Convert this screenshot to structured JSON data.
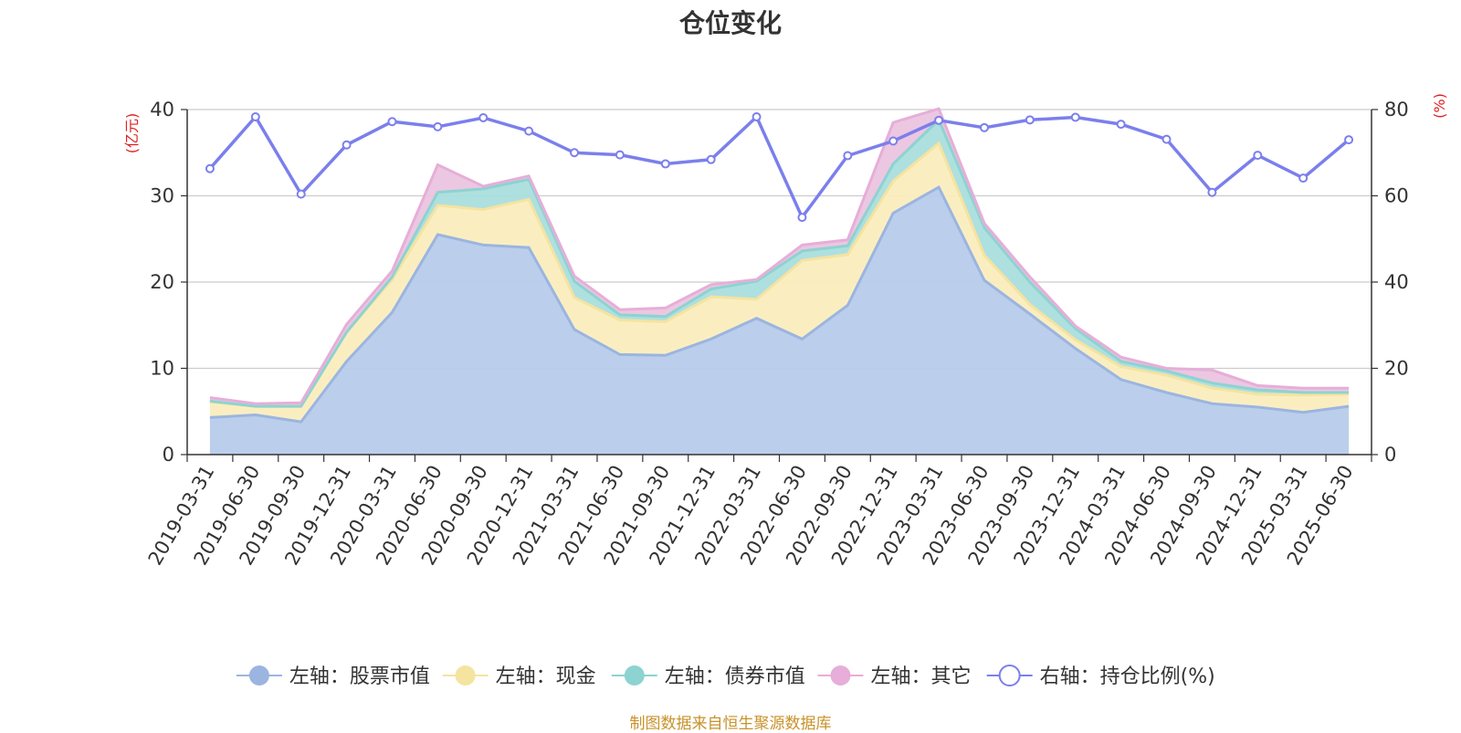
{
  "source_note": "制图数据来自恒生聚源数据库",
  "chart_data": {
    "type": "area",
    "title": "仓位变化",
    "left_axis": {
      "unit_label": "(亿元)",
      "ylim": [
        0,
        40
      ],
      "ticks": [
        0,
        10,
        20,
        30,
        40
      ]
    },
    "right_axis": {
      "unit_label": "(%)",
      "ylim": [
        0,
        80
      ],
      "ticks": [
        0,
        20,
        40,
        60,
        80
      ]
    },
    "grid": true,
    "legend_position": "bottom",
    "categories": [
      "2019-03-31",
      "2019-06-30",
      "2019-09-30",
      "2019-12-31",
      "2020-03-31",
      "2020-06-30",
      "2020-09-30",
      "2020-12-31",
      "2021-03-31",
      "2021-06-30",
      "2021-09-30",
      "2021-12-31",
      "2022-03-31",
      "2022-06-30",
      "2022-09-30",
      "2022-12-31",
      "2023-03-31",
      "2023-06-30",
      "2023-09-30",
      "2023-12-31",
      "2024-03-31",
      "2024-06-30",
      "2024-09-30",
      "2024-12-31",
      "2025-03-31",
      "2025-06-30"
    ],
    "series": [
      {
        "name": "左轴：股票市值",
        "axis": "left",
        "kind": "stacked-area",
        "color": "#9bb5e0",
        "fill": "#b7cbea",
        "values": [
          4.3,
          4.6,
          3.8,
          10.8,
          16.5,
          25.5,
          24.3,
          24.0,
          14.5,
          11.6,
          11.5,
          13.4,
          15.8,
          13.4,
          17.3,
          28.0,
          31.0,
          20.2,
          16.3,
          12.3,
          8.7,
          7.2,
          5.9,
          5.5,
          4.9,
          5.6
        ]
      },
      {
        "name": "左轴：现金",
        "axis": "left",
        "kind": "stacked-area",
        "color": "#f5e3a0",
        "fill": "#faedbe",
        "values": [
          1.8,
          1.0,
          1.8,
          3.4,
          3.8,
          3.4,
          4.1,
          5.6,
          3.7,
          4.0,
          3.9,
          4.9,
          2.2,
          9.1,
          5.9,
          3.7,
          5.1,
          2.9,
          1.1,
          1.0,
          1.5,
          2.0,
          1.8,
          1.5,
          2.0,
          1.4
        ]
      },
      {
        "name": "左轴：债券市值",
        "axis": "left",
        "kind": "stacked-area",
        "color": "#8dd3d1",
        "fill": "#aadedd",
        "values": [
          0.1,
          0.0,
          0.0,
          0.0,
          0.3,
          1.5,
          2.4,
          2.3,
          1.9,
          0.6,
          0.6,
          0.9,
          2.1,
          1.1,
          1.0,
          2.0,
          2.7,
          3.2,
          2.6,
          1.3,
          0.6,
          0.5,
          0.6,
          0.5,
          0.3,
          0.2
        ]
      },
      {
        "name": "左轴：其它",
        "axis": "left",
        "kind": "stacked-area",
        "color": "#e6aed8",
        "fill": "#ebc4df",
        "values": [
          0.4,
          0.3,
          0.4,
          0.9,
          0.7,
          3.2,
          0.3,
          0.4,
          0.6,
          0.6,
          1.0,
          0.5,
          0.2,
          0.7,
          0.7,
          4.8,
          1.3,
          0.5,
          0.6,
          0.3,
          0.5,
          0.3,
          1.5,
          0.5,
          0.5,
          0.5
        ]
      },
      {
        "name": "右轴：持仓比例(%)",
        "axis": "right",
        "kind": "line",
        "color": "#7b7fec",
        "values": [
          66.3,
          78.3,
          60.4,
          71.8,
          77.2,
          76.0,
          78.1,
          75.0,
          70.0,
          69.5,
          67.4,
          68.4,
          78.3,
          55.0,
          69.3,
          72.7,
          77.5,
          75.8,
          77.6,
          78.2,
          76.6,
          73.1,
          60.8,
          69.4,
          64.1,
          73.0
        ]
      }
    ]
  }
}
